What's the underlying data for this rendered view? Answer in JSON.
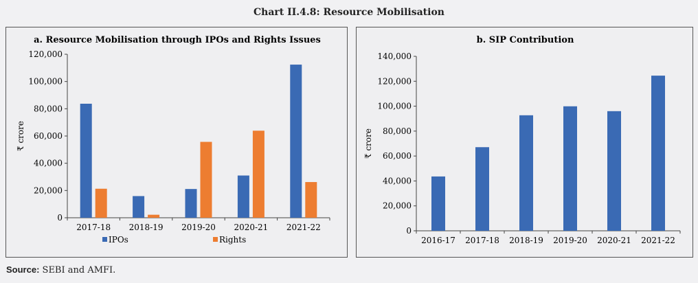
{
  "title": "Chart II.4.8: Resource Mobilisation",
  "source": {
    "label": "Source:",
    "text": " SEBI and AMFI."
  },
  "chart_data": [
    {
      "type": "bar",
      "title": "a. Resource Mobilisation through IPOs and Rights Issues",
      "ylabel": "₹ crore",
      "xlabel": "",
      "categories": [
        "2017-18",
        "2018-19",
        "2019-20",
        "2020-21",
        "2021-22"
      ],
      "series": [
        {
          "name": "IPOs",
          "color": "#3a6ab4",
          "values": [
            83700,
            15900,
            21100,
            31000,
            112400
          ]
        },
        {
          "name": "Rights",
          "color": "#ed7d31",
          "values": [
            21300,
            2200,
            55700,
            63900,
            26200
          ]
        }
      ],
      "ylim": [
        0,
        120000
      ],
      "yticks": [
        0,
        20000,
        40000,
        60000,
        80000,
        100000,
        120000
      ],
      "ytick_labels": [
        "0",
        "20,000",
        "40,000",
        "60,000",
        "80,000",
        "100,000",
        "120,000"
      ],
      "legend": "bottom",
      "grid": false
    },
    {
      "type": "bar",
      "title": "b. SIP Contribution",
      "ylabel": "₹ crore",
      "xlabel": "",
      "categories": [
        "2016-17",
        "2017-18",
        "2018-19",
        "2019-20",
        "2020-21",
        "2021-22"
      ],
      "series": [
        {
          "color": "#3a6ab4",
          "values": [
            43600,
            67100,
            92700,
            99900,
            96000,
            124500
          ]
        }
      ],
      "ylim": [
        0,
        140000
      ],
      "yticks": [
        0,
        20000,
        40000,
        60000,
        80000,
        100000,
        120000,
        140000
      ],
      "ytick_labels": [
        "0",
        "20,000",
        "40,000",
        "60,000",
        "80,000",
        "100,000",
        "120,000",
        "140,000"
      ],
      "grid": false
    }
  ]
}
